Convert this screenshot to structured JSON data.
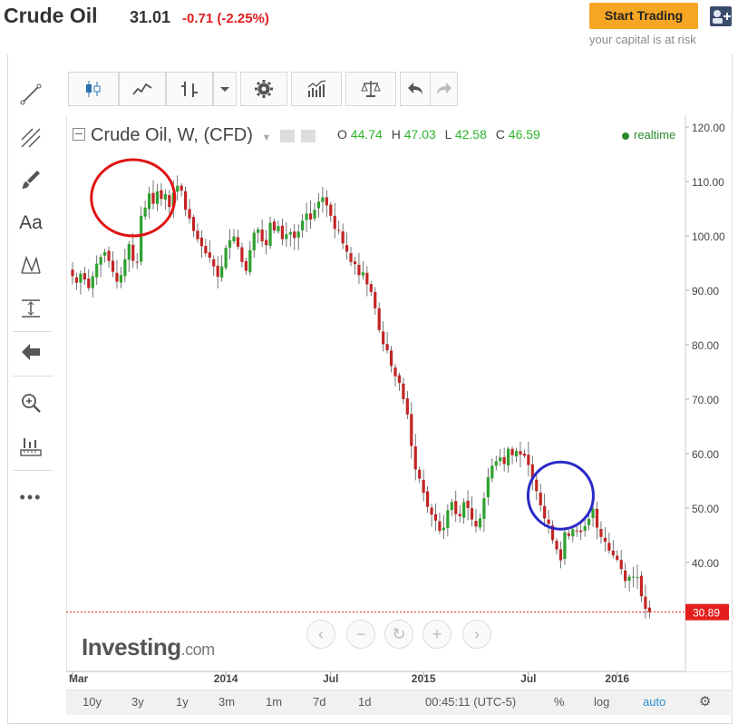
{
  "header": {
    "title": "Crude Oil",
    "price": "31.01",
    "change": "-0.71 (-2.25%)",
    "start_trading": "Start Trading",
    "risk_note": "your capital is at risk"
  },
  "legend": {
    "symbol": "Crude Oil, W, (CFD)",
    "o_label": "O",
    "o_value": "44.74",
    "h_label": "H",
    "h_value": "47.03",
    "l_label": "L",
    "l_value": "42.58",
    "c_label": "C",
    "c_value": "46.59",
    "realtime": "realtime"
  },
  "brand": {
    "name": "Investing",
    "suffix": ".com"
  },
  "toolbar_icons": [
    "candlestick-icon",
    "line-chart-icon",
    "bar-chart-icon",
    "dropdown-arrow-icon",
    "settings-icon",
    "indicators-icon",
    "compare-icon",
    "undo-icon",
    "redo-icon"
  ],
  "left_tools": [
    "trend-line-icon",
    "fib-icon",
    "brush-icon",
    "text-icon",
    "pattern-icon",
    "measure-icon",
    "back-arrow-icon",
    "zoom-icon",
    "ruler-icon",
    "more-icon"
  ],
  "left_tools_text": {
    "text": "Aa",
    "more": "•••"
  },
  "nav_controls": [
    "‹",
    "−",
    "↻",
    "+",
    "›"
  ],
  "bottom_bar": {
    "ranges": [
      "10y",
      "3y",
      "1y",
      "3m",
      "1m",
      "7d",
      "1d"
    ],
    "time": "00:45:11 (UTC-5)",
    "percent": "%",
    "log": "log",
    "auto": "auto"
  },
  "colors": {
    "up": "#2ea12e",
    "down": "#c32424",
    "last_price": "#e41d1d",
    "annotation_red": "#e01414",
    "annotation_blue": "#2a2ac8",
    "accent": "#f5a623"
  },
  "chart_data": {
    "type": "candlestick",
    "title": "Crude Oil, W, (CFD)",
    "ylim": [
      24,
      122
    ],
    "y_ticks": [
      "120.00",
      "110.00",
      "100.00",
      "90.00",
      "80.00",
      "70.00",
      "60.00",
      "50.00",
      "40.00"
    ],
    "y_tick_values": [
      120,
      110,
      100,
      90,
      80,
      70,
      60,
      50,
      40
    ],
    "x_ticks": [
      "Mar",
      "2014",
      "Jul",
      "2015",
      "Jul",
      "2016"
    ],
    "x_tick_index": [
      0,
      38,
      64,
      87,
      113,
      135
    ],
    "last_price": 30.89,
    "last_price_label": "30.89",
    "weekly_closes": [
      92.6,
      91.4,
      93.1,
      92.0,
      90.4,
      92.6,
      94.9,
      96.1,
      97.0,
      95.4,
      93.4,
      91.6,
      92.8,
      95.7,
      98.5,
      95.4,
      95.1,
      103.7,
      105.2,
      107.8,
      105.9,
      108.2,
      106.8,
      107.7,
      105.3,
      107.9,
      109.2,
      108.3,
      104.8,
      103.2,
      100.9,
      99.4,
      98.1,
      96.8,
      96.0,
      94.4,
      92.5,
      94.4,
      97.8,
      99.2,
      99.9,
      98.0,
      95.2,
      93.6,
      97.4,
      100.6,
      101.2,
      99.0,
      98.3,
      102.4,
      101.0,
      101.8,
      99.4,
      100.3,
      100.7,
      99.6,
      100.8,
      102.8,
      104.1,
      103.0,
      104.8,
      106.3,
      107.1,
      105.6,
      103.7,
      101.3,
      101.0,
      98.6,
      97.1,
      95.2,
      94.8,
      92.8,
      93.3,
      91.1,
      89.7,
      86.7,
      82.7,
      80.1,
      79.0,
      76.1,
      74.2,
      73.0,
      70.0,
      67.2,
      61.4,
      57.1,
      55.4,
      52.8,
      50.2,
      48.8,
      47.7,
      45.8,
      46.4,
      49.6,
      51.1,
      48.9,
      48.5,
      51.1,
      50.0,
      47.9,
      46.6,
      48.1,
      51.8,
      55.7,
      57.8,
      58.6,
      59.3,
      58.1,
      60.9,
      59.7,
      60.5,
      59.8,
      59.6,
      57.9,
      55.5,
      53.1,
      50.5,
      48.1,
      47.1,
      44.1,
      42.4,
      40.4,
      45.6,
      44.9,
      46.1,
      45.7,
      45.6,
      46.7,
      48.0,
      49.9,
      46.4,
      44.7,
      43.8,
      42.2,
      41.3,
      40.5,
      38.8,
      36.6,
      37.4,
      37.4,
      37.3,
      33.8,
      31.5,
      30.9
    ],
    "red_circle": {
      "center": [
        107,
        15
      ],
      "label": ""
    },
    "blue_circle": {
      "center": [
        52.3,
        121
      ],
      "label": ""
    }
  }
}
